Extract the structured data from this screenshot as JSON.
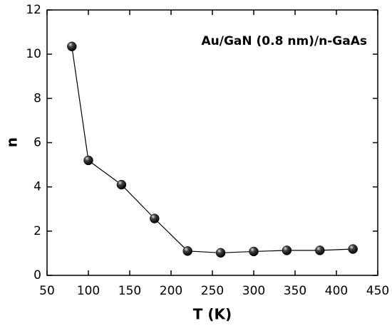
{
  "chart_data": {
    "type": "line",
    "annotation": "Au/GaN (0.8 nm)/n-GaAs",
    "xlabel": "T (K)",
    "ylabel": "n",
    "x": [
      80,
      100,
      140,
      180,
      220,
      260,
      300,
      340,
      380,
      420
    ],
    "values": [
      10.35,
      5.2,
      4.1,
      2.57,
      1.1,
      1.02,
      1.08,
      1.13,
      1.13,
      1.19
    ],
    "color": "#000000",
    "xlim": [
      50,
      450
    ],
    "xticks": [
      50,
      100,
      150,
      200,
      250,
      300,
      350,
      400,
      450
    ],
    "ylim": [
      0,
      12
    ],
    "yticks": [
      0,
      2,
      4,
      6,
      8,
      10,
      12
    ]
  }
}
